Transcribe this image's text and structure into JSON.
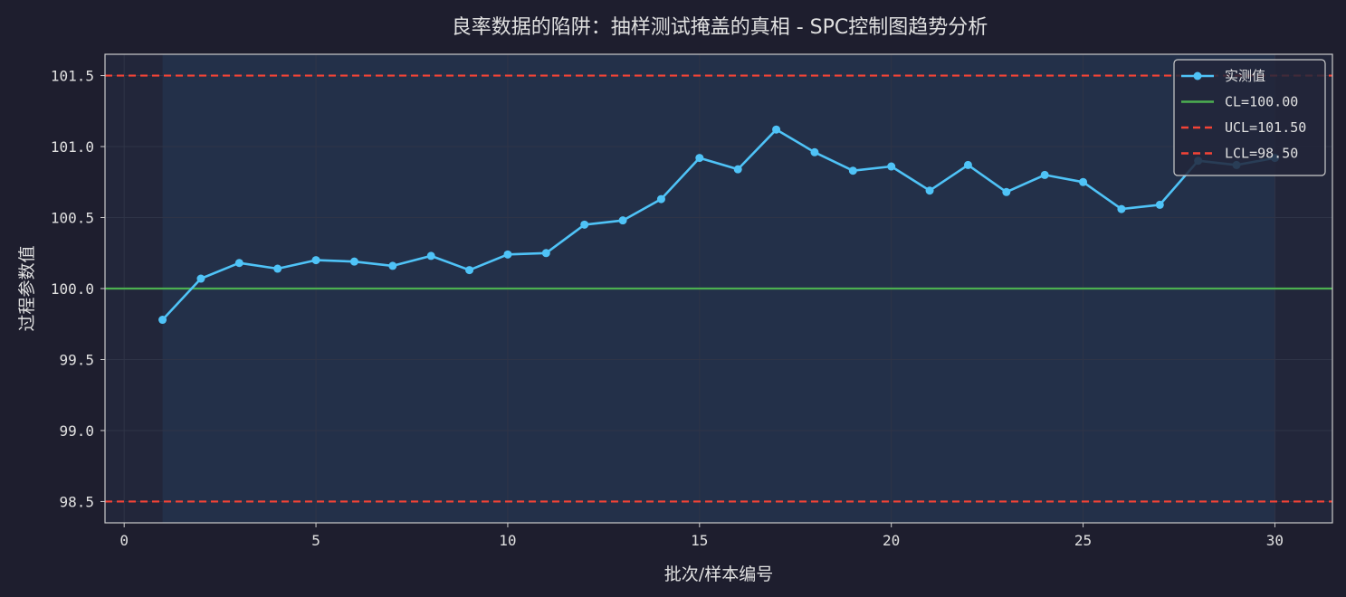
{
  "chart_data": {
    "type": "line",
    "title": "良率数据的陷阱：抽样测试掩盖的真相 - SPC控制图趋势分析",
    "xlabel": "批次/样本编号",
    "ylabel": "过程参数值",
    "xlim": [
      -0.5,
      31.5
    ],
    "ylim": [
      98.35,
      101.65
    ],
    "xticks": [
      0,
      5,
      10,
      15,
      20,
      25,
      30
    ],
    "yticks": [
      98.5,
      99.0,
      99.5,
      100.0,
      100.5,
      101.0,
      101.5
    ],
    "ytick_labels": [
      "98.5",
      "99.0",
      "99.5",
      "100.0",
      "100.5",
      "101.0",
      "101.5"
    ],
    "grid": true,
    "legend_position": "top-right",
    "series": [
      {
        "name": "实测值",
        "color": "#4fc3f7",
        "x": [
          1,
          2,
          3,
          4,
          5,
          6,
          7,
          8,
          9,
          10,
          11,
          12,
          13,
          14,
          15,
          16,
          17,
          18,
          19,
          20,
          21,
          22,
          23,
          24,
          25,
          26,
          27,
          28,
          29,
          30
        ],
        "y": [
          99.78,
          100.07,
          100.18,
          100.14,
          100.2,
          100.19,
          100.16,
          100.23,
          100.13,
          100.24,
          100.25,
          100.45,
          100.48,
          100.63,
          100.92,
          100.84,
          101.12,
          100.96,
          100.83,
          100.86,
          100.69,
          100.87,
          100.68,
          100.8,
          100.75,
          100.56,
          100.59,
          100.9,
          100.87,
          100.92
        ]
      }
    ],
    "control_lines": [
      {
        "name": "CL=100.00",
        "value": 100.0,
        "color": "#4caf50",
        "style": "solid"
      },
      {
        "name": "UCL=101.50",
        "value": 101.5,
        "color": "#f44336",
        "style": "dashed"
      },
      {
        "name": "LCL=98.50",
        "value": 98.5,
        "color": "#f44336",
        "style": "dashed"
      }
    ],
    "colors": {
      "background": "#1e1e2e",
      "plot_background": "#22263a",
      "data_band": "#233049",
      "grid": "#2f3447",
      "spine": "#cccccc"
    }
  }
}
